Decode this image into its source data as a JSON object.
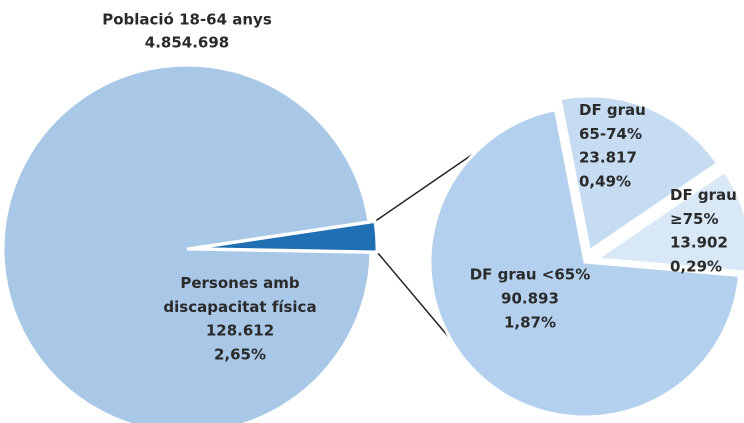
{
  "chart_data": [
    {
      "type": "pie",
      "title": "Població 18-64 anys",
      "subtitle": "4.854.698",
      "categories": [
        null,
        "Persones amb discapacitat física"
      ],
      "values": [
        97.35,
        2.65
      ],
      "value_labels": [
        null,
        "2,65%"
      ],
      "count_labels": [
        null,
        "128.612"
      ],
      "colors": [
        "#a9c8e8",
        "#1f6fb2"
      ]
    },
    {
      "type": "pie",
      "categories": [
        "DF grau <65%",
        "DF grau 65-74%",
        "DF grau ≥75%"
      ],
      "values": [
        1.87,
        0.49,
        0.29
      ],
      "value_labels": [
        "1,87%",
        "0,49%",
        "0,29%"
      ],
      "count_labels": [
        "90.893",
        "23.817",
        "13.902"
      ],
      "colors": [
        "#b3d1ee",
        "#c5dcf2",
        "#d9e8f7"
      ]
    }
  ]
}
